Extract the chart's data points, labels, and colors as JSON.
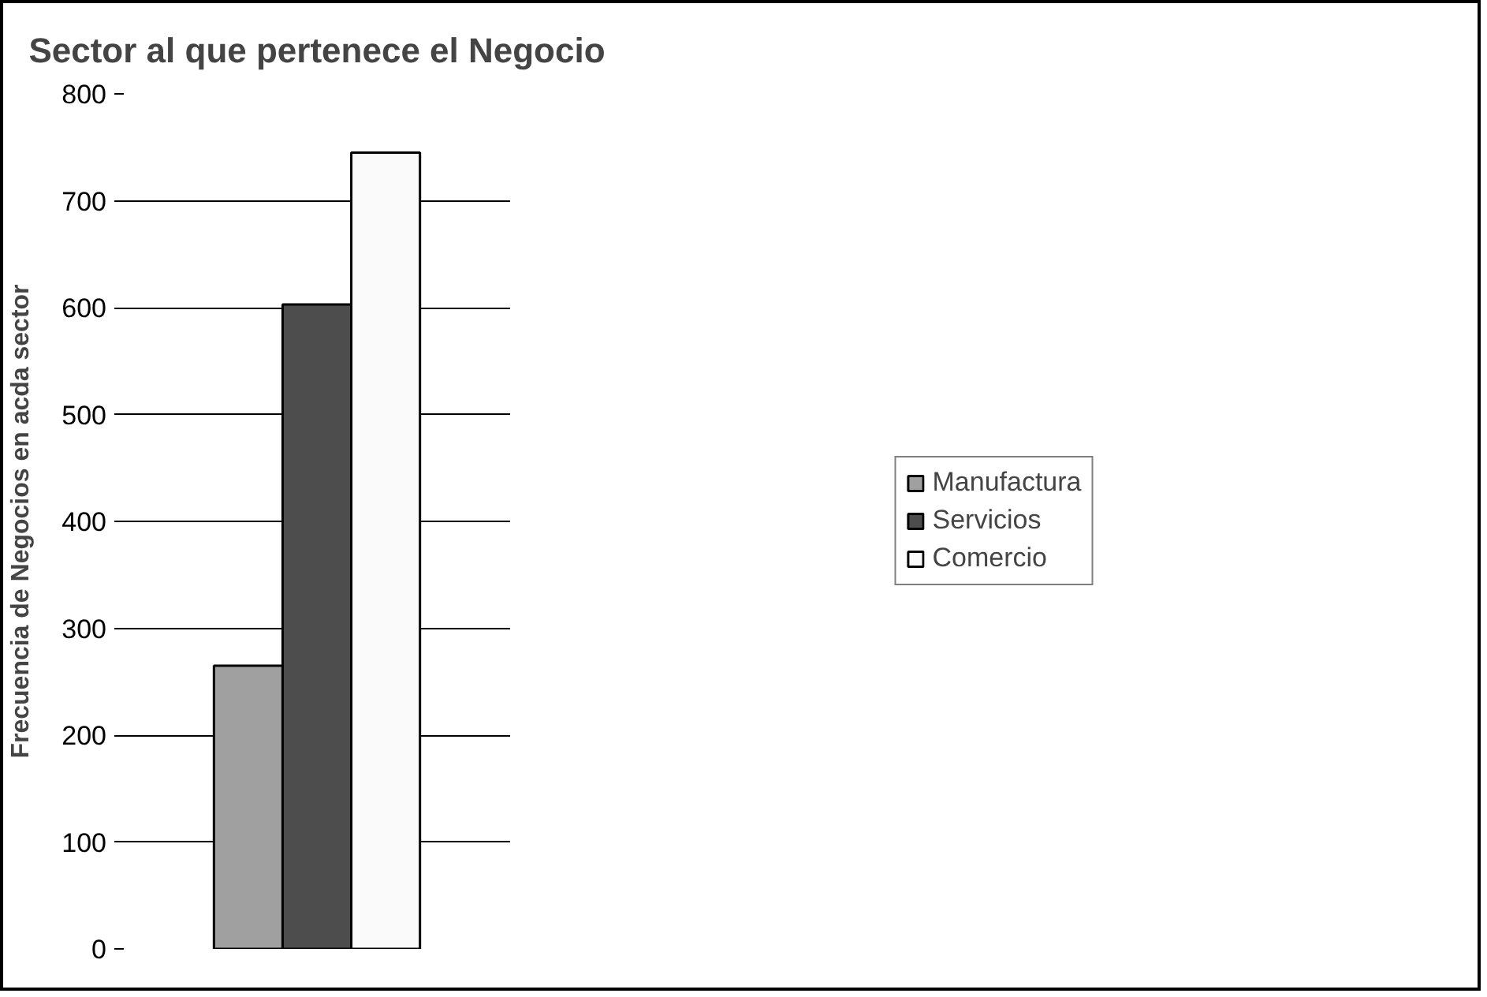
{
  "chart_data": {
    "type": "bar",
    "title": "Sector al que pertenece el Negocio",
    "ylabel": "Frecuencia de Negocios en acda sector",
    "categories": [
      null
    ],
    "series": [
      {
        "name": "Manufactura",
        "color": "#a0a0a0",
        "values": [
          265
        ]
      },
      {
        "name": "Servicios",
        "color": "#4d4d4d",
        "values": [
          603
        ]
      },
      {
        "name": "Comercio",
        "color": "#fafafa",
        "values": [
          745
        ]
      }
    ],
    "ylim": [
      0,
      800
    ],
    "yticks": [
      0,
      100,
      200,
      300,
      400,
      500,
      600,
      700,
      800
    ],
    "grid": "y",
    "legend": "right"
  }
}
